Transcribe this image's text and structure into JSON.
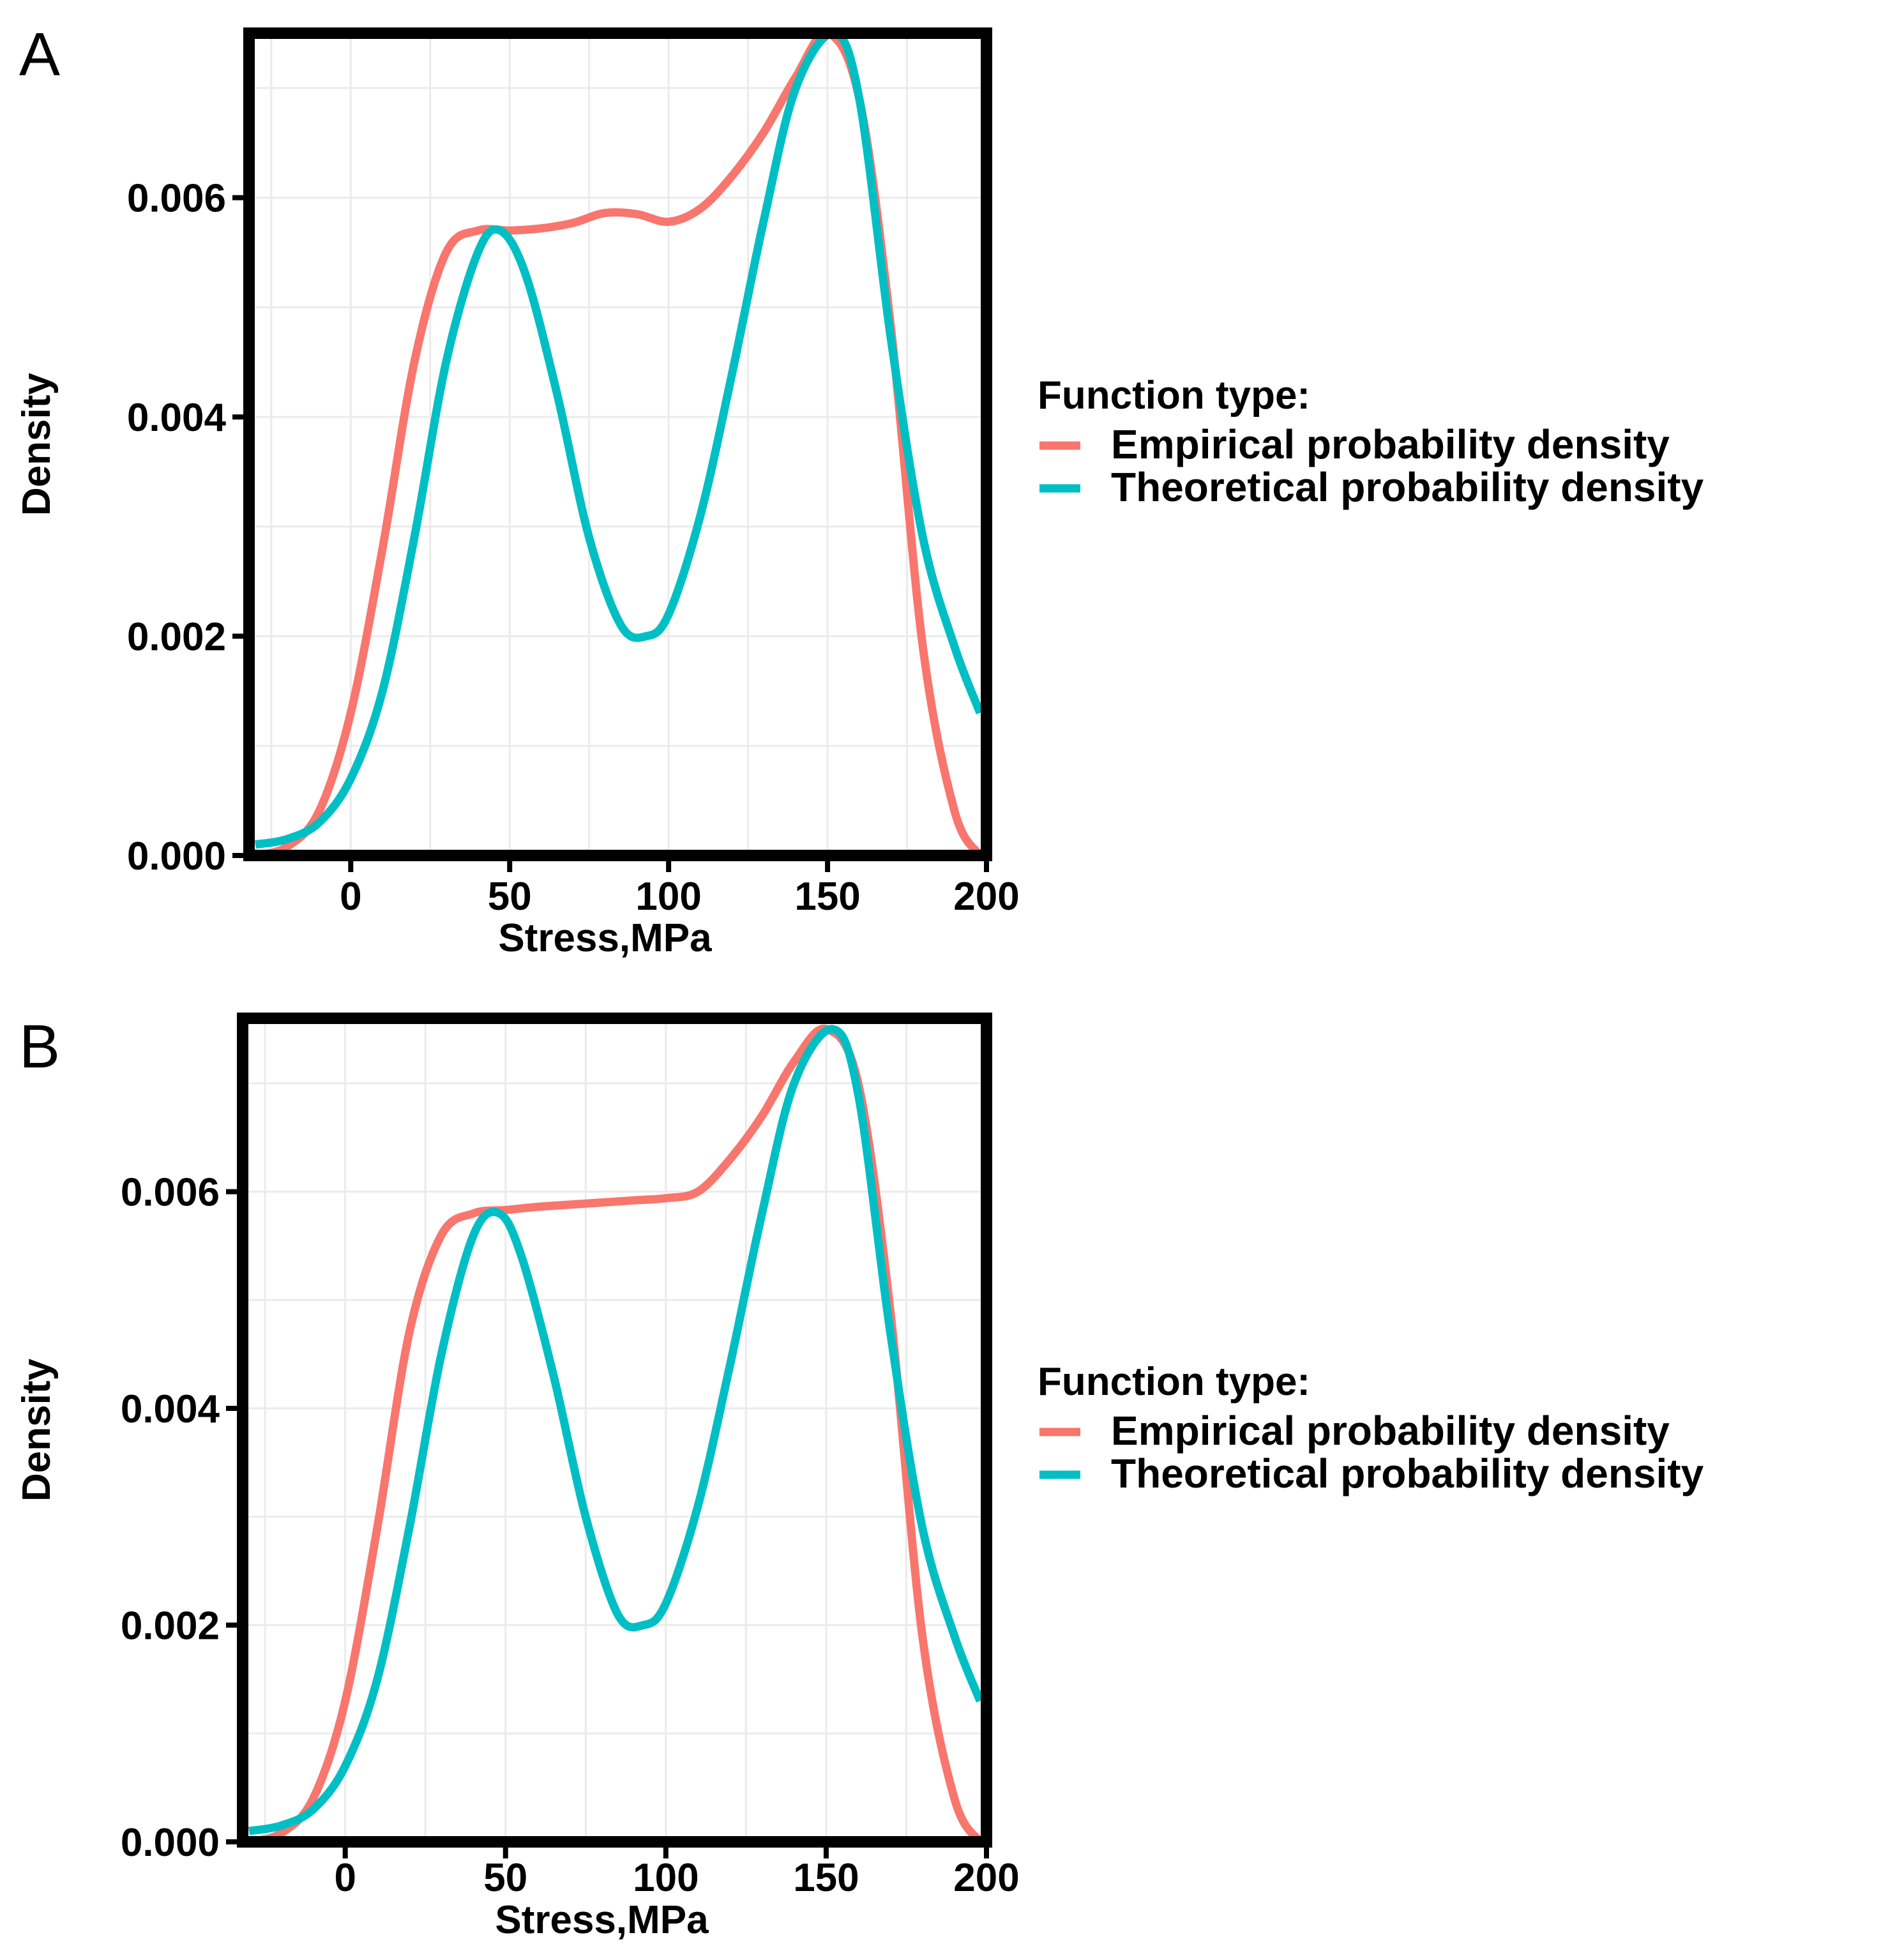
{
  "chart_data": [
    {
      "panel_label": "A",
      "type": "line",
      "xlabel": "Stress,MPa",
      "ylabel": "Density",
      "xlim": [
        -32,
        200
      ],
      "ylim": [
        0,
        0.0075
      ],
      "x_ticks": [
        0,
        50,
        100,
        150,
        200
      ],
      "x_tick_labels": [
        "0",
        "50",
        "100",
        "150",
        "200"
      ],
      "y_ticks": [
        0,
        0.002,
        0.004,
        0.006
      ],
      "y_tick_labels": [
        "0.000",
        "0.002",
        "0.004",
        "0.006"
      ],
      "grid": true,
      "legend": {
        "title": "Function type:",
        "position": "right",
        "entries": [
          "Empirical probability density",
          "Theoretical probability density"
        ]
      },
      "series": [
        {
          "name": "Empirical probability density",
          "color": "#F8766D",
          "x": [
            -30,
            -20,
            -10,
            0,
            10,
            20,
            30,
            40,
            50,
            60,
            70,
            80,
            90,
            100,
            110,
            120,
            130,
            140,
            150,
            160,
            170,
            180,
            190,
            198
          ],
          "y": [
            0.0,
            8e-05,
            0.0004,
            0.0013,
            0.0028,
            0.0045,
            0.0055,
            0.0057,
            0.0057,
            0.00572,
            0.00577,
            0.00586,
            0.00585,
            0.00578,
            0.0059,
            0.0062,
            0.0066,
            0.0071,
            0.0075,
            0.0069,
            0.0048,
            0.0019,
            0.0004,
            0.0
          ]
        },
        {
          "name": "Theoretical probability density",
          "color": "#00BFC4",
          "x": [
            -30,
            -20,
            -10,
            0,
            10,
            20,
            30,
            40,
            47,
            55,
            65,
            75,
            85,
            93,
            100,
            110,
            120,
            130,
            140,
            152,
            160,
            170,
            180,
            190,
            198
          ],
          "y": [
            0.0001,
            0.00015,
            0.0003,
            0.0007,
            0.0015,
            0.0029,
            0.0045,
            0.0055,
            0.0057,
            0.0053,
            0.0042,
            0.0029,
            0.0021,
            0.002,
            0.0022,
            0.0031,
            0.0044,
            0.0058,
            0.007,
            0.0075,
            0.0069,
            0.0047,
            0.0029,
            0.0019,
            0.0013
          ]
        }
      ]
    },
    {
      "panel_label": "B",
      "type": "line",
      "xlabel": "Stress,MPa",
      "ylabel": "Density",
      "xlim": [
        -32,
        200
      ],
      "ylim": [
        0,
        0.0076
      ],
      "x_ticks": [
        0,
        50,
        100,
        150,
        200
      ],
      "x_tick_labels": [
        "0",
        "50",
        "100",
        "150",
        "200"
      ],
      "y_ticks": [
        0,
        0.002,
        0.004,
        0.006
      ],
      "y_tick_labels": [
        "0.000",
        "0.002",
        "0.004",
        "0.006"
      ],
      "grid": true,
      "legend": {
        "title": "Function type:",
        "position": "right",
        "entries": [
          "Empirical probability density",
          "Theoretical probability density"
        ]
      },
      "series": [
        {
          "name": "Empirical probability density",
          "color": "#F8766D",
          "x": [
            -30,
            -20,
            -10,
            0,
            10,
            20,
            30,
            40,
            50,
            60,
            70,
            80,
            90,
            100,
            110,
            120,
            130,
            140,
            150,
            160,
            170,
            180,
            190,
            198
          ],
          "y": [
            0.0,
            8e-05,
            0.0004,
            0.0013,
            0.0029,
            0.0047,
            0.0056,
            0.0058,
            0.00583,
            0.00586,
            0.00588,
            0.0059,
            0.00592,
            0.00594,
            0.006,
            0.0063,
            0.0067,
            0.0072,
            0.0075,
            0.007,
            0.0049,
            0.0019,
            0.0004,
            0.0
          ]
        },
        {
          "name": "Theoretical probability density",
          "color": "#00BFC4",
          "x": [
            -30,
            -20,
            -10,
            0,
            10,
            20,
            30,
            40,
            48,
            55,
            65,
            75,
            85,
            93,
            100,
            110,
            120,
            130,
            140,
            152,
            160,
            170,
            180,
            190,
            198
          ],
          "y": [
            0.0001,
            0.00015,
            0.0003,
            0.0007,
            0.0015,
            0.0029,
            0.0045,
            0.0056,
            0.0058,
            0.0054,
            0.0043,
            0.003,
            0.0021,
            0.002,
            0.0022,
            0.0031,
            0.0044,
            0.0058,
            0.007,
            0.0075,
            0.0069,
            0.0047,
            0.0029,
            0.0019,
            0.0013
          ]
        }
      ]
    }
  ]
}
